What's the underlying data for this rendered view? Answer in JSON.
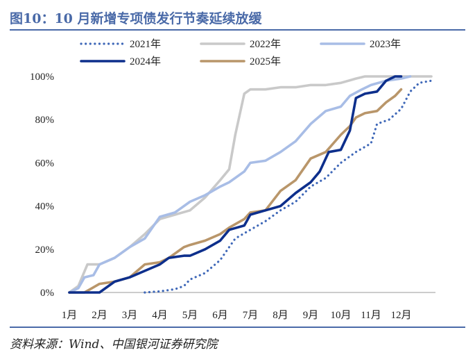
{
  "figure": {
    "title": "图10：10 月新增专项债发行节奏延续放缓",
    "source": "资料来源：Wind、中国银河证券研究院"
  },
  "colors": {
    "accent": "#4a6aa8",
    "s2021": "#3f68b8",
    "s2022": "#c9c9c9",
    "s2023": "#a8bde6",
    "s2024": "#0d2f8c",
    "s2025": "#b9966a"
  },
  "chart_data": {
    "type": "line",
    "title": "",
    "xlabel": "",
    "ylabel": "",
    "xlim": [
      1,
      13
    ],
    "ylim": [
      0,
      100
    ],
    "x_ticks": [
      "1月",
      "2月",
      "3月",
      "4月",
      "5月",
      "6月",
      "7月",
      "8月",
      "9月",
      "10月",
      "11月",
      "12月"
    ],
    "y_ticks": [
      "0%",
      "20%",
      "40%",
      "60%",
      "80%",
      "100%"
    ],
    "legend": [
      "2021年",
      "2022年",
      "2023年",
      "2024年",
      "2025年"
    ],
    "grid": false,
    "series": [
      {
        "name": "2021年",
        "style": "dotted",
        "color_key": "s2021",
        "points": [
          [
            3.5,
            0
          ],
          [
            4,
            0.5
          ],
          [
            4.5,
            1.5
          ],
          [
            4.8,
            3
          ],
          [
            5,
            6
          ],
          [
            5.5,
            9
          ],
          [
            6,
            15
          ],
          [
            6.3,
            21
          ],
          [
            6.5,
            25
          ],
          [
            7,
            29
          ],
          [
            7.5,
            33
          ],
          [
            8,
            38
          ],
          [
            8.5,
            42
          ],
          [
            9,
            49
          ],
          [
            9.5,
            53
          ],
          [
            10,
            60
          ],
          [
            10.5,
            65
          ],
          [
            11,
            69
          ],
          [
            11.2,
            78
          ],
          [
            11.6,
            80
          ],
          [
            12,
            85
          ],
          [
            12.3,
            93
          ],
          [
            12.6,
            97
          ],
          [
            13,
            98
          ]
        ]
      },
      {
        "name": "2022年",
        "style": "solid",
        "color_key": "s2022",
        "points": [
          [
            1,
            0
          ],
          [
            1.3,
            3
          ],
          [
            1.6,
            13
          ],
          [
            2,
            13
          ],
          [
            2.5,
            16
          ],
          [
            3,
            21
          ],
          [
            3.5,
            27
          ],
          [
            4,
            34
          ],
          [
            4.5,
            36
          ],
          [
            5,
            38
          ],
          [
            5.5,
            44
          ],
          [
            6,
            52
          ],
          [
            6.3,
            57
          ],
          [
            6.5,
            73
          ],
          [
            6.8,
            92
          ],
          [
            7,
            94
          ],
          [
            7.5,
            94
          ],
          [
            8,
            95
          ],
          [
            8.5,
            95
          ],
          [
            9,
            96
          ],
          [
            9.5,
            96
          ],
          [
            10,
            97
          ],
          [
            10.5,
            99
          ],
          [
            10.8,
            100
          ],
          [
            13,
            100
          ]
        ]
      },
      {
        "name": "2023年",
        "style": "solid",
        "color_key": "s2023",
        "points": [
          [
            1,
            0
          ],
          [
            1.3,
            2
          ],
          [
            1.5,
            7
          ],
          [
            1.8,
            8
          ],
          [
            2,
            13
          ],
          [
            2.5,
            16
          ],
          [
            3,
            21
          ],
          [
            3.5,
            25
          ],
          [
            4,
            35
          ],
          [
            4.5,
            37
          ],
          [
            5,
            42
          ],
          [
            5.5,
            45
          ],
          [
            6,
            49
          ],
          [
            6.3,
            51
          ],
          [
            6.8,
            56
          ],
          [
            7,
            60
          ],
          [
            7.5,
            61
          ],
          [
            8,
            65
          ],
          [
            8.5,
            70
          ],
          [
            9,
            78
          ],
          [
            9.5,
            84
          ],
          [
            10,
            86
          ],
          [
            10.3,
            91
          ],
          [
            10.7,
            94
          ],
          [
            11,
            96
          ],
          [
            11.5,
            98
          ],
          [
            12,
            99
          ],
          [
            12.3,
            100
          ]
        ]
      },
      {
        "name": "2024年",
        "style": "solid",
        "color_key": "s2024",
        "points": [
          [
            1,
            0
          ],
          [
            2,
            0
          ],
          [
            2.5,
            5
          ],
          [
            3,
            7
          ],
          [
            3.5,
            10
          ],
          [
            4,
            13
          ],
          [
            4.3,
            16
          ],
          [
            4.8,
            17
          ],
          [
            5,
            17
          ],
          [
            5.5,
            20
          ],
          [
            6,
            24
          ],
          [
            6.3,
            29
          ],
          [
            6.8,
            31
          ],
          [
            7,
            36
          ],
          [
            7.5,
            38
          ],
          [
            8,
            40
          ],
          [
            8.5,
            46
          ],
          [
            9,
            51
          ],
          [
            9.3,
            56
          ],
          [
            9.6,
            65
          ],
          [
            10,
            66
          ],
          [
            10.3,
            75
          ],
          [
            10.5,
            90
          ],
          [
            10.8,
            92
          ],
          [
            11.2,
            93
          ],
          [
            11.5,
            98
          ],
          [
            11.8,
            100
          ],
          [
            12,
            100
          ]
        ]
      },
      {
        "name": "2025年",
        "style": "solid",
        "color_key": "s2025",
        "points": [
          [
            1,
            0
          ],
          [
            1.5,
            0
          ],
          [
            2,
            4
          ],
          [
            2.5,
            5
          ],
          [
            3,
            7
          ],
          [
            3.5,
            13
          ],
          [
            4,
            14
          ],
          [
            4.3,
            16
          ],
          [
            4.8,
            21
          ],
          [
            5,
            22
          ],
          [
            5.5,
            24
          ],
          [
            6,
            27
          ],
          [
            6.3,
            30
          ],
          [
            6.8,
            34
          ],
          [
            7,
            37
          ],
          [
            7.5,
            38
          ],
          [
            8,
            47
          ],
          [
            8.5,
            52
          ],
          [
            9,
            62
          ],
          [
            9.5,
            65
          ],
          [
            10,
            73
          ],
          [
            10.3,
            77
          ],
          [
            10.5,
            81
          ],
          [
            10.8,
            83
          ],
          [
            11.2,
            84
          ],
          [
            11.5,
            88
          ],
          [
            11.8,
            91
          ],
          [
            12,
            94
          ]
        ]
      }
    ]
  }
}
